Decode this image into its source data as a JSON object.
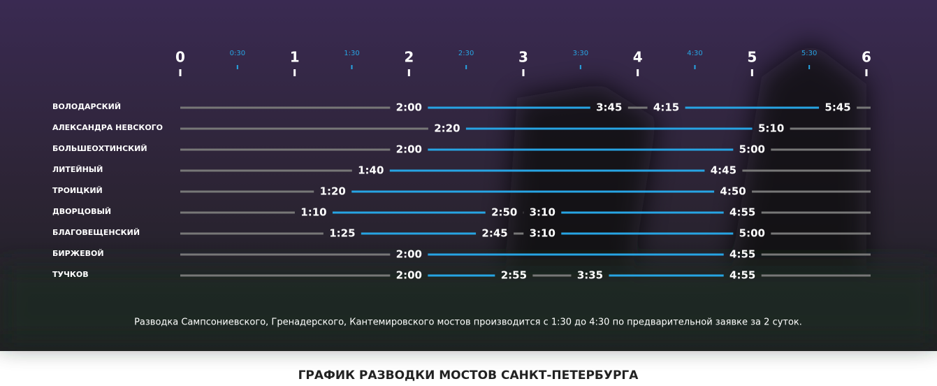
{
  "chart_data": {
    "type": "timeline",
    "xlim": [
      0,
      6
    ],
    "xticks": [
      0,
      1,
      2,
      3,
      4,
      5,
      6
    ],
    "xticks_minor": [
      {
        "value": 0.5,
        "label": "0:30"
      },
      {
        "value": 1.5,
        "label": "1:30"
      },
      {
        "value": 2.5,
        "label": "2:30"
      },
      {
        "value": 3.5,
        "label": "3:30"
      },
      {
        "value": 4.5,
        "label": "4:30"
      },
      {
        "value": 5.5,
        "label": "5:30"
      }
    ],
    "color": "#27a4e3",
    "rows": [
      {
        "name": "ВОЛОДАРСКИЙ",
        "values": [
          2,
          3.75,
          4.25,
          5.75
        ],
        "value_labels": [
          "2:00",
          "3:45",
          "4:15",
          "5:45"
        ]
      },
      {
        "name": "АЛЕКСАНДРА НЕВСКОГО",
        "values": [
          2.333333,
          5.166667
        ],
        "value_labels": [
          "2:20",
          "5:10"
        ]
      },
      {
        "name": "БОЛЬШЕОХТИНСКИЙ",
        "values": [
          2,
          5
        ],
        "value_labels": [
          "2:00",
          "5:00"
        ]
      },
      {
        "name": "ЛИТЕЙНЫЙ",
        "values": [
          1.666667,
          4.75
        ],
        "value_labels": [
          "1:40",
          "4:45"
        ]
      },
      {
        "name": "ТРОИЦКИЙ",
        "values": [
          1.333333,
          4.833333
        ],
        "value_labels": [
          "1:20",
          "4:50"
        ]
      },
      {
        "name": "ДВОРЦОВЫЙ",
        "values": [
          1.166667,
          2.833333,
          3.166667,
          4.916667
        ],
        "value_labels": [
          "1:10",
          "2:50",
          "3:10",
          "4:55"
        ]
      },
      {
        "name": "БЛАГОВЕЩЕНСКИЙ",
        "values": [
          1.416667,
          2.75,
          3.166667,
          5
        ],
        "value_labels": [
          "1:25",
          "2:45",
          "3:10",
          "5:00"
        ]
      },
      {
        "name": "БИРЖЕВОЙ",
        "values": [
          2,
          4.916667
        ],
        "value_labels": [
          "2:00",
          "4:55"
        ]
      },
      {
        "name": "ТУЧКОВ",
        "values": [
          2,
          2.916667,
          3.583333,
          4.916667
        ],
        "value_labels": [
          "2:00",
          "2:55",
          "3:35",
          "4:55"
        ]
      }
    ],
    "note": "Разводка Сампсониевского, Гренадерского, Кантемировского мостов производится с 1:30 до 4:30 по предварительной заявке за 2 суток.",
    "title": "ГРАФИК РАЗВОДКИ МОСТОВ САНКТ-ПЕТЕРБУРГА"
  }
}
